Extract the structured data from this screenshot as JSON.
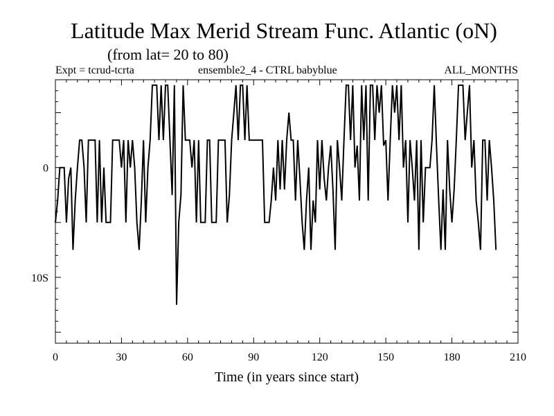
{
  "header": {
    "title": "Latitude Max Merid Stream Func. Atlantic (oN)",
    "subtitle": "(from lat= 20 to 80)",
    "left": "Expt = tcrud-tcrta",
    "center": "ensemble2_4 - CTRL babyblue",
    "right": "ALL_MONTHS"
  },
  "chart_data": {
    "type": "line",
    "title": "Latitude Max Merid Stream Func. Atlantic (oN)",
    "subtitle": "(from lat= 20 to 80)",
    "xlabel": "Time (in years since start)",
    "ylabel": "",
    "xlim": [
      0,
      210
    ],
    "ylim": [
      -16,
      8
    ],
    "xticks": [
      0,
      30,
      60,
      90,
      120,
      150,
      180,
      210
    ],
    "xtick_labels": [
      "0",
      "30",
      "60",
      "90",
      "120",
      "150",
      "180",
      "210"
    ],
    "yticks": [
      0,
      -10
    ],
    "ytick_labels": [
      "0",
      "10S"
    ],
    "grid": false,
    "series": [
      {
        "values": [
          [
            0,
            -5
          ],
          [
            1,
            -3
          ],
          [
            2,
            0
          ],
          [
            3,
            0
          ],
          [
            4,
            0
          ],
          [
            5,
            -5
          ],
          [
            6,
            -1
          ],
          [
            7,
            0
          ],
          [
            8,
            -7.5
          ],
          [
            9,
            -3
          ],
          [
            10,
            0
          ],
          [
            11,
            2.5
          ],
          [
            12,
            2.5
          ],
          [
            13,
            0
          ],
          [
            14,
            -5
          ],
          [
            15,
            2.5
          ],
          [
            16,
            2.5
          ],
          [
            17,
            2.5
          ],
          [
            18,
            2.5
          ],
          [
            19,
            -5
          ],
          [
            20,
            2.5
          ],
          [
            21,
            -5
          ],
          [
            22,
            0
          ],
          [
            23,
            -5
          ],
          [
            24,
            -5
          ],
          [
            25,
            -5
          ],
          [
            26,
            2.5
          ],
          [
            27,
            2.5
          ],
          [
            28,
            2.5
          ],
          [
            29,
            2.5
          ],
          [
            30,
            0
          ],
          [
            31,
            2.5
          ],
          [
            32,
            -5
          ],
          [
            33,
            2.5
          ],
          [
            34,
            0
          ],
          [
            35,
            2.5
          ],
          [
            36,
            0
          ],
          [
            37,
            -5
          ],
          [
            38,
            -7.5
          ],
          [
            39,
            -3
          ],
          [
            40,
            2.5
          ],
          [
            41,
            -5
          ],
          [
            42,
            0
          ],
          [
            43,
            2.5
          ],
          [
            44,
            7.5
          ],
          [
            45,
            7.5
          ],
          [
            46,
            7.5
          ],
          [
            47,
            2.5
          ],
          [
            48,
            7.5
          ],
          [
            49,
            2.5
          ],
          [
            50,
            7.5
          ],
          [
            51,
            7.5
          ],
          [
            52,
            2.5
          ],
          [
            53,
            -2.5
          ],
          [
            54,
            7.5
          ],
          [
            55,
            -12.5
          ],
          [
            56,
            -5
          ],
          [
            57,
            -2.5
          ],
          [
            58,
            7.5
          ],
          [
            59,
            2.5
          ],
          [
            60,
            2.5
          ],
          [
            61,
            2.5
          ],
          [
            62,
            0
          ],
          [
            63,
            2.5
          ],
          [
            64,
            -5
          ],
          [
            65,
            2.5
          ],
          [
            66,
            -5
          ],
          [
            67,
            -5
          ],
          [
            68,
            -5
          ],
          [
            69,
            2.5
          ],
          [
            70,
            2.5
          ],
          [
            71,
            -5
          ],
          [
            72,
            -5
          ],
          [
            73,
            -5
          ],
          [
            74,
            2.5
          ],
          [
            75,
            2.5
          ],
          [
            76,
            2.5
          ],
          [
            77,
            2.5
          ],
          [
            78,
            -5
          ],
          [
            79,
            -2.5
          ],
          [
            80,
            2.5
          ],
          [
            81,
            5
          ],
          [
            82,
            7.5
          ],
          [
            83,
            2.5
          ],
          [
            84,
            7.5
          ],
          [
            85,
            7.5
          ],
          [
            86,
            2.5
          ],
          [
            87,
            7.5
          ],
          [
            88,
            2.5
          ],
          [
            89,
            2.5
          ],
          [
            90,
            2.5
          ],
          [
            91,
            2.5
          ],
          [
            92,
            2.5
          ],
          [
            93,
            2.5
          ],
          [
            94,
            2.5
          ],
          [
            95,
            -5
          ],
          [
            96,
            -5
          ],
          [
            97,
            -5
          ],
          [
            98,
            -3
          ],
          [
            99,
            0
          ],
          [
            100,
            -3
          ],
          [
            101,
            2.5
          ],
          [
            102,
            -2
          ],
          [
            103,
            2.5
          ],
          [
            104,
            -2
          ],
          [
            105,
            2.5
          ],
          [
            106,
            5
          ],
          [
            107,
            2.5
          ],
          [
            108,
            2.5
          ],
          [
            109,
            -3
          ],
          [
            110,
            2.5
          ],
          [
            111,
            -1
          ],
          [
            112,
            -5
          ],
          [
            113,
            -7.5
          ],
          [
            114,
            -3
          ],
          [
            115,
            0
          ],
          [
            116,
            -7.5
          ],
          [
            117,
            -3
          ],
          [
            118,
            -5
          ],
          [
            119,
            2.5
          ],
          [
            120,
            -2
          ],
          [
            121,
            2.5
          ],
          [
            122,
            -1
          ],
          [
            123,
            -3
          ],
          [
            124,
            0
          ],
          [
            125,
            2
          ],
          [
            126,
            -2
          ],
          [
            127,
            -7.5
          ],
          [
            128,
            2.5
          ],
          [
            129,
            0
          ],
          [
            130,
            -3
          ],
          [
            131,
            2.5
          ],
          [
            132,
            7.5
          ],
          [
            133,
            7.5
          ],
          [
            134,
            2.5
          ],
          [
            135,
            7.5
          ],
          [
            136,
            0
          ],
          [
            137,
            2
          ],
          [
            138,
            -3
          ],
          [
            139,
            7.5
          ],
          [
            140,
            2.5
          ],
          [
            141,
            7.5
          ],
          [
            142,
            -3
          ],
          [
            143,
            7.5
          ],
          [
            144,
            7.5
          ],
          [
            145,
            2.5
          ],
          [
            146,
            7.5
          ],
          [
            147,
            5
          ],
          [
            148,
            7.5
          ],
          [
            149,
            2
          ],
          [
            150,
            2.5
          ],
          [
            151,
            -3
          ],
          [
            152,
            2.5
          ],
          [
            153,
            7.5
          ],
          [
            154,
            5
          ],
          [
            155,
            7.5
          ],
          [
            156,
            2.5
          ],
          [
            157,
            7.5
          ],
          [
            158,
            0
          ],
          [
            159,
            2.5
          ],
          [
            160,
            -5
          ],
          [
            161,
            2.5
          ],
          [
            162,
            0
          ],
          [
            163,
            -3
          ],
          [
            164,
            2.5
          ],
          [
            165,
            -7.5
          ],
          [
            166,
            2.5
          ],
          [
            167,
            -5
          ],
          [
            168,
            0
          ],
          [
            169,
            0
          ],
          [
            170,
            0
          ],
          [
            171,
            2.5
          ],
          [
            172,
            7.5
          ],
          [
            173,
            2
          ],
          [
            174,
            -3
          ],
          [
            175,
            -7.5
          ],
          [
            176,
            -2
          ],
          [
            177,
            -7.5
          ],
          [
            178,
            2.5
          ],
          [
            179,
            -2
          ],
          [
            180,
            -5
          ],
          [
            181,
            -2
          ],
          [
            182,
            2.5
          ],
          [
            183,
            7.5
          ],
          [
            184,
            7.5
          ],
          [
            185,
            7.5
          ],
          [
            186,
            2.5
          ],
          [
            187,
            5
          ],
          [
            188,
            7.5
          ],
          [
            189,
            0
          ],
          [
            190,
            2.5
          ],
          [
            191,
            -3
          ],
          [
            192,
            -5
          ],
          [
            193,
            -7.5
          ],
          [
            194,
            2.5
          ],
          [
            195,
            2.5
          ],
          [
            196,
            -3
          ],
          [
            197,
            2.5
          ],
          [
            198,
            0
          ],
          [
            199,
            -3
          ],
          [
            200,
            -7.5
          ]
        ]
      }
    ]
  }
}
